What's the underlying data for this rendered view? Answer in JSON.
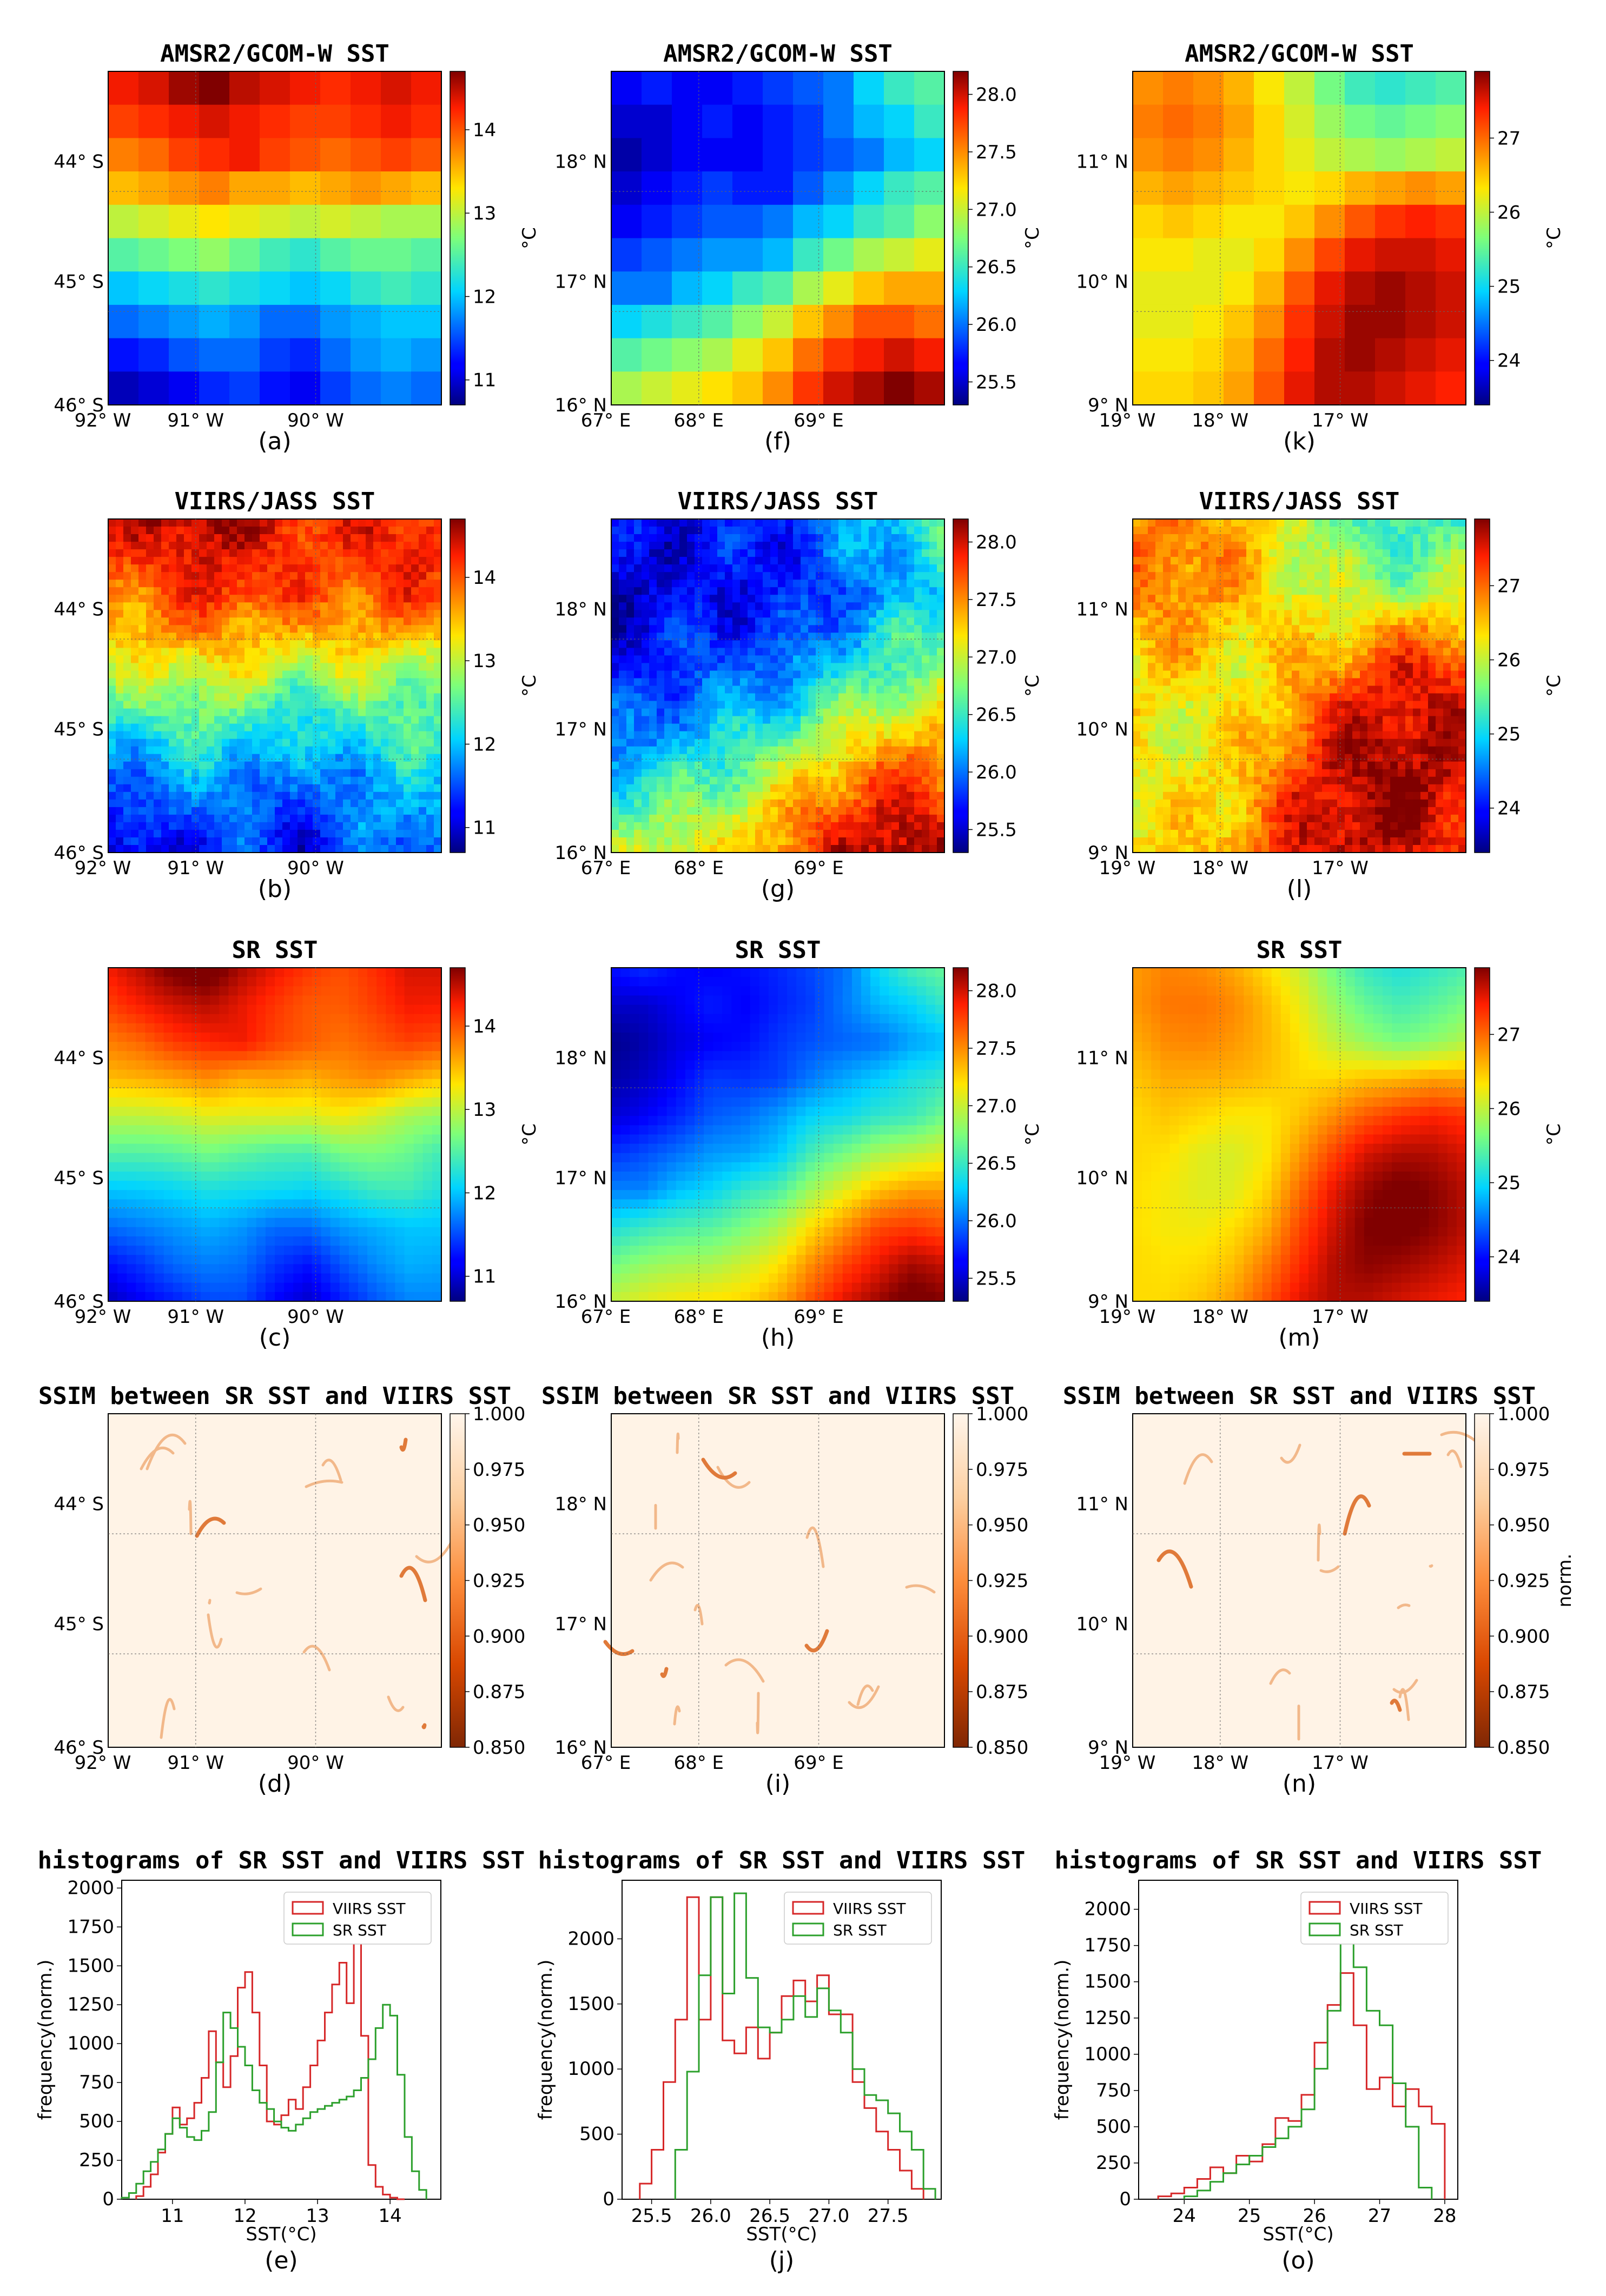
{
  "figure": {
    "rows": [
      {
        "title": "AMSR2/GCOM-W SST",
        "kind": "amsr2"
      },
      {
        "title": "VIIRS/JASS SST",
        "kind": "viirs"
      },
      {
        "title": "SR SST",
        "kind": "sr"
      },
      {
        "title": "SSIM between SR SST and VIIRS SST",
        "kind": "ssim"
      },
      {
        "title": "histograms of SR SST and VIIRS SST",
        "kind": "hist"
      }
    ],
    "columns": [
      {
        "lat_labels": [
          "44° S",
          "45° S",
          "46° S"
        ],
        "lon_labels": [
          "92° W",
          "91° W",
          "90° W"
        ],
        "sst_ticks": [
          "11",
          "12",
          "13",
          "14"
        ],
        "sst_range": [
          10.7,
          14.7
        ],
        "hist_x_ticks": [
          "11",
          "12",
          "13",
          "14"
        ],
        "hist_y_ticks": [
          "0",
          "250",
          "500",
          "750",
          "1000",
          "1250",
          "1500",
          "1750",
          "2000"
        ],
        "ssim_unit": ""
      },
      {
        "lat_labels": [
          "18° N",
          "17° N",
          "16° N"
        ],
        "lon_labels": [
          "67° E",
          "68° E",
          "69° E"
        ],
        "sst_ticks": [
          "25.5",
          "26.0",
          "26.5",
          "27.0",
          "27.5",
          "28.0"
        ],
        "sst_range": [
          25.3,
          28.2
        ],
        "hist_x_ticks": [
          "25.5",
          "26.0",
          "26.5",
          "27.0",
          "27.5"
        ],
        "hist_y_ticks": [
          "0",
          "500",
          "1000",
          "1500",
          "2000"
        ],
        "ssim_unit": ""
      },
      {
        "lat_labels": [
          "11° N",
          "10° N",
          "9° N"
        ],
        "lon_labels": [
          "19° W",
          "18° W",
          "17° W"
        ],
        "sst_ticks": [
          "24",
          "25",
          "26",
          "27"
        ],
        "sst_range": [
          23.4,
          27.9
        ],
        "hist_x_ticks": [
          "24",
          "25",
          "26",
          "27",
          "28"
        ],
        "hist_y_ticks": [
          "0",
          "250",
          "500",
          "750",
          "1000",
          "1250",
          "1500",
          "1750",
          "2000"
        ],
        "ssim_unit": "norm."
      }
    ],
    "captions": [
      "(a)",
      "(f)",
      "(k)",
      "(b)",
      "(g)",
      "(l)",
      "(c)",
      "(h)",
      "(m)",
      "(d)",
      "(i)",
      "(n)",
      "(e)",
      "(j)",
      "(o)"
    ],
    "colorbar_unit": "°C",
    "ssim_ticks": [
      "1.000",
      "0.975",
      "0.950",
      "0.925",
      "0.900",
      "0.875",
      "0.850"
    ],
    "hist_xlabel": "SST(°C)",
    "hist_ylabel": "frequency(norm.)",
    "legend": {
      "viirs": "VIIRS SST",
      "sr": "SR SST"
    },
    "colors": {
      "viirs": "#d62728",
      "sr": "#2ca02c"
    }
  },
  "chart_data": [
    {
      "type": "heatmap",
      "title": "AMSR2/GCOM-W SST",
      "colorbar_label": "°C",
      "clim": [
        10.7,
        14.7
      ],
      "grid_rows": 10,
      "grid_cols": 11,
      "values": [
        [
          14.3,
          14.4,
          14.6,
          14.7,
          14.5,
          14.4,
          14.3,
          14.2,
          14.3,
          14.4,
          14.3
        ],
        [
          14.1,
          14.2,
          14.3,
          14.4,
          14.3,
          14.2,
          14.1,
          14.1,
          14.2,
          14.3,
          14.2
        ],
        [
          13.8,
          13.9,
          14.1,
          14.2,
          14.3,
          14.1,
          14.0,
          13.9,
          14.0,
          14.1,
          14.0
        ],
        [
          13.5,
          13.6,
          13.7,
          13.8,
          13.6,
          13.6,
          13.5,
          13.6,
          13.7,
          13.6,
          13.5
        ],
        [
          13.0,
          13.1,
          13.2,
          13.3,
          13.2,
          13.1,
          13.0,
          13.1,
          13.0,
          12.9,
          12.9
        ],
        [
          12.5,
          12.6,
          12.7,
          12.8,
          12.6,
          12.4,
          12.3,
          12.5,
          12.6,
          12.6,
          12.5
        ],
        [
          12.0,
          12.1,
          12.2,
          12.3,
          12.2,
          12.1,
          12.0,
          12.1,
          12.3,
          12.4,
          12.3
        ],
        [
          11.6,
          11.7,
          11.8,
          11.9,
          11.8,
          11.6,
          11.6,
          11.8,
          11.9,
          12.0,
          12.0
        ],
        [
          11.2,
          11.3,
          11.5,
          11.6,
          11.6,
          11.4,
          11.3,
          11.6,
          11.8,
          11.9,
          11.8
        ],
        [
          10.9,
          11.0,
          11.1,
          11.3,
          11.4,
          11.2,
          11.1,
          11.4,
          11.6,
          11.7,
          11.6
        ]
      ]
    },
    {
      "type": "heatmap",
      "title": "AMSR2/GCOM-W SST",
      "colorbar_label": "°C",
      "clim": [
        25.3,
        28.2
      ],
      "grid_rows": 10,
      "grid_cols": 11,
      "values": [
        [
          25.6,
          25.7,
          25.6,
          25.6,
          25.7,
          25.8,
          25.9,
          26.0,
          26.3,
          26.5,
          26.6
        ],
        [
          25.5,
          25.5,
          25.6,
          25.7,
          25.6,
          25.7,
          25.8,
          26.0,
          26.2,
          26.3,
          26.5
        ],
        [
          25.4,
          25.5,
          25.6,
          25.6,
          25.6,
          25.7,
          25.8,
          25.9,
          26.0,
          26.2,
          26.3
        ],
        [
          25.5,
          25.6,
          25.7,
          25.8,
          25.7,
          25.7,
          25.9,
          26.1,
          26.3,
          26.5,
          26.6
        ],
        [
          25.6,
          25.7,
          25.8,
          25.9,
          25.9,
          26.0,
          26.2,
          26.3,
          26.5,
          26.6,
          26.8
        ],
        [
          25.8,
          25.9,
          26.0,
          26.1,
          26.1,
          26.2,
          26.5,
          26.7,
          26.9,
          27.0,
          27.1
        ],
        [
          26.0,
          26.0,
          26.2,
          26.3,
          26.5,
          26.6,
          26.9,
          27.1,
          27.3,
          27.4,
          27.4
        ],
        [
          26.3,
          26.4,
          26.5,
          26.6,
          26.8,
          27.0,
          27.3,
          27.5,
          27.7,
          27.7,
          27.6
        ],
        [
          26.6,
          26.7,
          26.8,
          26.9,
          27.1,
          27.3,
          27.6,
          27.8,
          27.9,
          28.0,
          27.9
        ],
        [
          26.9,
          27.0,
          27.1,
          27.2,
          27.3,
          27.5,
          27.8,
          28.0,
          28.1,
          28.2,
          28.1
        ]
      ]
    },
    {
      "type": "heatmap",
      "title": "AMSR2/GCOM-W SST",
      "colorbar_label": "°C",
      "clim": [
        23.4,
        27.9
      ],
      "grid_rows": 10,
      "grid_cols": 11,
      "values": [
        [
          26.8,
          26.9,
          26.8,
          26.6,
          26.3,
          26.0,
          25.6,
          25.3,
          25.2,
          25.3,
          25.4
        ],
        [
          26.9,
          27.0,
          26.9,
          26.7,
          26.4,
          26.1,
          25.8,
          25.6,
          25.5,
          25.6,
          25.7
        ],
        [
          26.8,
          26.9,
          26.8,
          26.6,
          26.4,
          26.2,
          26.0,
          25.9,
          25.8,
          25.9,
          26.0
        ],
        [
          26.6,
          26.7,
          26.6,
          26.5,
          26.4,
          26.3,
          26.4,
          26.6,
          26.7,
          26.8,
          26.7
        ],
        [
          26.4,
          26.5,
          26.4,
          26.3,
          26.3,
          26.5,
          26.8,
          27.1,
          27.3,
          27.4,
          27.3
        ],
        [
          26.3,
          26.3,
          26.2,
          26.2,
          26.4,
          26.8,
          27.2,
          27.5,
          27.6,
          27.6,
          27.5
        ],
        [
          26.2,
          26.2,
          26.2,
          26.3,
          26.6,
          27.1,
          27.5,
          27.7,
          27.8,
          27.7,
          27.6
        ],
        [
          26.2,
          26.2,
          26.3,
          26.5,
          26.8,
          27.3,
          27.6,
          27.8,
          27.8,
          27.7,
          27.6
        ],
        [
          26.3,
          26.3,
          26.4,
          26.6,
          27.0,
          27.4,
          27.7,
          27.8,
          27.7,
          27.6,
          27.5
        ],
        [
          26.4,
          26.4,
          26.5,
          26.7,
          27.1,
          27.5,
          27.7,
          27.7,
          27.6,
          27.5,
          27.4
        ]
      ]
    },
    {
      "type": "histogram",
      "title": "histograms of SR SST and VIIRS SST",
      "xlabel": "SST(°C)",
      "ylabel": "frequency(norm.)",
      "xlim": [
        10.3,
        14.7
      ],
      "ylim": [
        0,
        2050
      ],
      "bin_width": 0.1,
      "series": [
        {
          "name": "VIIRS SST",
          "bin_starts": [
            10.5,
            10.6,
            10.7,
            10.8,
            10.9,
            11.0,
            11.1,
            11.2,
            11.3,
            11.4,
            11.5,
            11.6,
            11.7,
            11.8,
            11.9,
            12.0,
            12.1,
            12.2,
            12.3,
            12.4,
            12.5,
            12.6,
            12.7,
            12.8,
            12.9,
            13.0,
            13.1,
            13.2,
            13.3,
            13.4,
            13.5,
            13.6,
            13.7,
            13.8,
            13.9,
            14.0,
            14.1
          ],
          "values": [
            20,
            80,
            160,
            300,
            420,
            590,
            480,
            520,
            620,
            780,
            1080,
            880,
            720,
            920,
            1360,
            1460,
            1200,
            860,
            500,
            480,
            540,
            640,
            580,
            720,
            860,
            1020,
            1200,
            1380,
            1520,
            1260,
            1720,
            1050,
            220,
            80,
            30,
            10,
            0
          ]
        },
        {
          "name": "SR SST",
          "bin_starts": [
            10.3,
            10.4,
            10.5,
            10.6,
            10.7,
            10.8,
            10.9,
            11.0,
            11.1,
            11.2,
            11.3,
            11.4,
            11.5,
            11.6,
            11.7,
            11.8,
            11.9,
            12.0,
            12.1,
            12.2,
            12.3,
            12.4,
            12.5,
            12.6,
            12.7,
            12.8,
            12.9,
            13.0,
            13.1,
            13.2,
            13.3,
            13.4,
            13.5,
            13.6,
            13.7,
            13.8,
            13.9,
            14.0,
            14.1,
            14.2,
            14.3,
            14.4
          ],
          "values": [
            10,
            40,
            100,
            180,
            240,
            320,
            420,
            520,
            460,
            400,
            380,
            440,
            560,
            880,
            1200,
            1100,
            980,
            860,
            700,
            620,
            580,
            500,
            460,
            440,
            480,
            520,
            560,
            580,
            600,
            620,
            640,
            660,
            700,
            780,
            900,
            1100,
            1250,
            1180,
            800,
            400,
            180,
            60
          ]
        }
      ]
    },
    {
      "type": "histogram",
      "title": "histograms of SR SST and VIIRS SST",
      "xlabel": "SST(°C)",
      "ylabel": "frequency(norm.)",
      "xlim": [
        25.25,
        27.95
      ],
      "ylim": [
        0,
        2450
      ],
      "bin_width": 0.1,
      "series": [
        {
          "name": "VIIRS SST",
          "bin_starts": [
            25.4,
            25.5,
            25.6,
            25.7,
            25.8,
            25.9,
            26.0,
            26.1,
            26.2,
            26.3,
            26.4,
            26.5,
            26.6,
            26.7,
            26.8,
            26.9,
            27.0,
            27.1,
            27.2,
            27.3,
            27.4,
            27.5,
            27.6,
            27.7
          ],
          "values": [
            120,
            380,
            900,
            1380,
            2320,
            1380,
            2320,
            1220,
            1120,
            1320,
            1080,
            1280,
            1560,
            1680,
            1520,
            1720,
            1420,
            1420,
            900,
            700,
            520,
            380,
            220,
            80
          ]
        },
        {
          "name": "SR SST",
          "bin_starts": [
            25.7,
            25.8,
            25.9,
            26.0,
            26.1,
            26.2,
            26.3,
            26.4,
            26.5,
            26.6,
            26.7,
            26.8,
            26.9,
            27.0,
            27.1,
            27.2,
            27.3,
            27.4,
            27.5,
            27.6,
            27.7,
            27.8
          ],
          "values": [
            380,
            980,
            1720,
            2320,
            1580,
            2350,
            1700,
            1320,
            1280,
            1380,
            1560,
            1400,
            1620,
            1450,
            1280,
            1000,
            800,
            760,
            660,
            520,
            380,
            80
          ]
        }
      ]
    },
    {
      "type": "histogram",
      "title": "histograms of SR SST and VIIRS SST",
      "xlabel": "SST(°C)",
      "ylabel": "frequency(norm.)",
      "xlim": [
        23.3,
        28.2
      ],
      "ylim": [
        0,
        2200
      ],
      "bin_width": 0.2,
      "series": [
        {
          "name": "VIIRS SST",
          "bin_starts": [
            23.6,
            23.8,
            24.0,
            24.2,
            24.4,
            24.6,
            24.8,
            25.0,
            25.2,
            25.4,
            25.6,
            25.8,
            26.0,
            26.2,
            26.4,
            26.6,
            26.8,
            27.0,
            27.2,
            27.4,
            27.6,
            27.8
          ],
          "values": [
            20,
            40,
            80,
            140,
            220,
            180,
            300,
            260,
            380,
            560,
            540,
            720,
            1080,
            1340,
            1560,
            1200,
            760,
            840,
            640,
            760,
            640,
            520
          ]
        },
        {
          "name": "SR SST",
          "bin_starts": [
            24.0,
            24.2,
            24.4,
            24.6,
            24.8,
            25.0,
            25.2,
            25.4,
            25.6,
            25.8,
            26.0,
            26.2,
            26.4,
            26.6,
            26.8,
            27.0,
            27.2,
            27.4,
            27.6
          ],
          "values": [
            20,
            60,
            120,
            180,
            240,
            300,
            360,
            420,
            500,
            620,
            900,
            1300,
            1800,
            1600,
            1300,
            1200,
            800,
            500,
            80
          ]
        }
      ]
    }
  ]
}
